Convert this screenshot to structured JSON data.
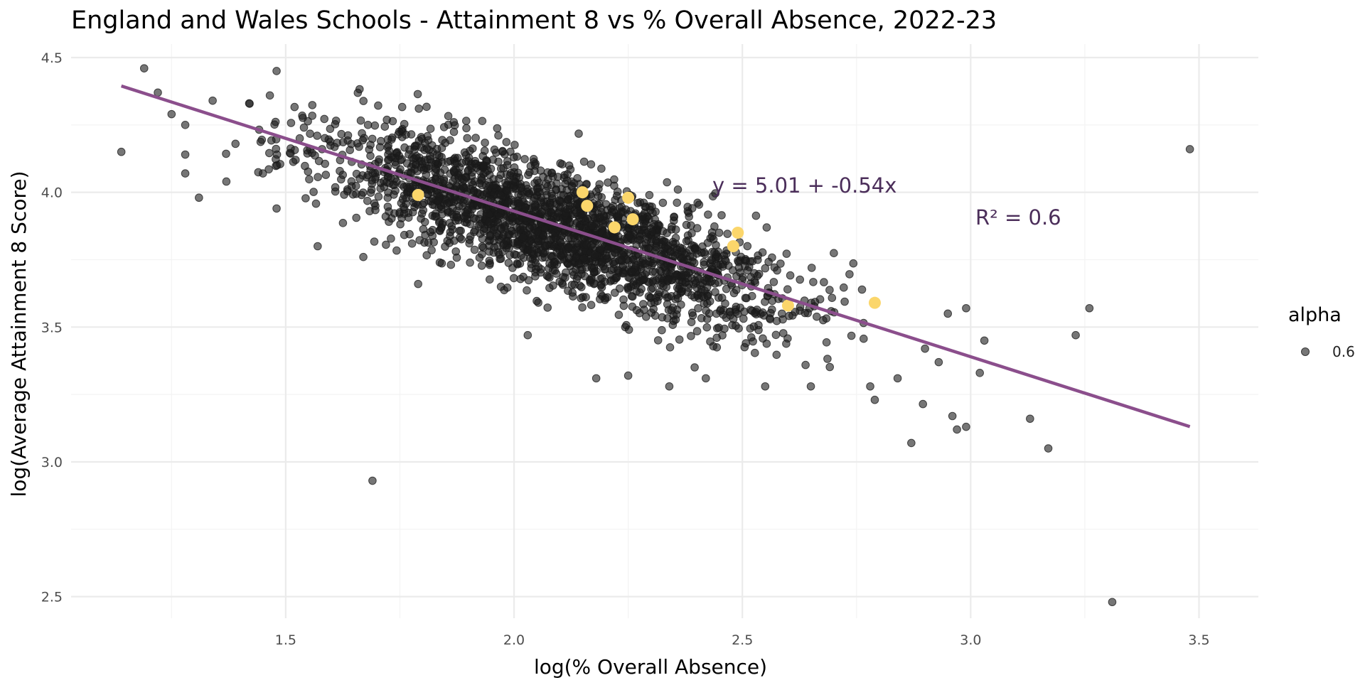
{
  "chart_data": {
    "type": "scatter",
    "title": "England and Wales Schools - Attainment 8 vs % Overall Absence, 2022-23",
    "xlabel": "log(% Overall Absence)",
    "ylabel": "log(Average Attainment 8 Score)",
    "xlim": [
      1.03,
      3.63
    ],
    "ylim": [
      2.42,
      4.55
    ],
    "x_ticks": [
      1.5,
      2.0,
      2.5,
      3.0,
      3.5
    ],
    "x_tick_labels": [
      "1.5",
      "2.0",
      "2.5",
      "3.0",
      "3.5"
    ],
    "y_ticks": [
      2.5,
      3.0,
      3.5,
      4.0,
      4.5
    ],
    "y_tick_labels": [
      "2.5",
      "3.0",
      "3.5",
      "4.0",
      "4.5"
    ],
    "grid": true,
    "legend": {
      "title": "alpha",
      "entries": [
        {
          "label": "0.6"
        }
      ],
      "position": "right"
    },
    "regression": {
      "intercept": 5.01,
      "slope": -0.54,
      "x_range": [
        1.14,
        3.48
      ],
      "color": "#8b4e8c",
      "equation_label": "y = 5.01 + -0.54x",
      "r2_label": "R² = 0.6"
    },
    "series": [
      {
        "name": "schools",
        "color": "#1a1a1a",
        "opacity": 0.6,
        "cloud": {
          "count": 2300,
          "x_mean": 2.1,
          "x_sd": 0.25,
          "slope": -0.54,
          "intercept": 5.0,
          "resid_sd": 0.11,
          "x_min": 1.35,
          "x_max": 2.95
        },
        "points": [
          {
            "x": 1.14,
            "y": 4.15
          },
          {
            "x": 1.19,
            "y": 4.46
          },
          {
            "x": 1.22,
            "y": 4.37
          },
          {
            "x": 1.25,
            "y": 4.29
          },
          {
            "x": 1.28,
            "y": 4.25
          },
          {
            "x": 1.28,
            "y": 4.14
          },
          {
            "x": 1.28,
            "y": 4.07
          },
          {
            "x": 1.31,
            "y": 3.98
          },
          {
            "x": 1.34,
            "y": 4.34
          },
          {
            "x": 1.37,
            "y": 4.04
          },
          {
            "x": 1.39,
            "y": 4.18
          },
          {
            "x": 1.42,
            "y": 4.33
          },
          {
            "x": 1.45,
            "y": 4.07
          },
          {
            "x": 1.48,
            "y": 3.94
          },
          {
            "x": 1.48,
            "y": 4.45
          },
          {
            "x": 1.57,
            "y": 3.8
          },
          {
            "x": 1.67,
            "y": 3.76
          },
          {
            "x": 1.69,
            "y": 2.93
          },
          {
            "x": 1.79,
            "y": 3.66
          },
          {
            "x": 2.03,
            "y": 3.47
          },
          {
            "x": 2.18,
            "y": 3.31
          },
          {
            "x": 2.25,
            "y": 3.32
          },
          {
            "x": 2.34,
            "y": 3.28
          },
          {
            "x": 2.42,
            "y": 3.31
          },
          {
            "x": 2.55,
            "y": 3.28
          },
          {
            "x": 2.65,
            "y": 3.28
          },
          {
            "x": 2.78,
            "y": 3.28
          },
          {
            "x": 2.79,
            "y": 3.23
          },
          {
            "x": 2.84,
            "y": 3.31
          },
          {
            "x": 2.87,
            "y": 3.07
          },
          {
            "x": 2.9,
            "y": 3.42
          },
          {
            "x": 2.93,
            "y": 3.37
          },
          {
            "x": 2.95,
            "y": 3.55
          },
          {
            "x": 2.96,
            "y": 3.17
          },
          {
            "x": 2.97,
            "y": 3.12
          },
          {
            "x": 2.99,
            "y": 3.13
          },
          {
            "x": 2.99,
            "y": 3.57
          },
          {
            "x": 3.02,
            "y": 3.33
          },
          {
            "x": 3.03,
            "y": 3.45
          },
          {
            "x": 3.13,
            "y": 3.16
          },
          {
            "x": 3.17,
            "y": 3.05
          },
          {
            "x": 3.23,
            "y": 3.47
          },
          {
            "x": 3.26,
            "y": 3.57
          },
          {
            "x": 3.31,
            "y": 2.48
          },
          {
            "x": 3.48,
            "y": 4.16
          }
        ]
      },
      {
        "name": "highlighted",
        "color": "#fbd66b",
        "opacity": 1.0,
        "points": [
          {
            "x": 1.79,
            "y": 3.99
          },
          {
            "x": 2.15,
            "y": 4.0
          },
          {
            "x": 2.16,
            "y": 3.95
          },
          {
            "x": 2.22,
            "y": 3.87
          },
          {
            "x": 2.25,
            "y": 3.98
          },
          {
            "x": 2.26,
            "y": 3.9
          },
          {
            "x": 2.48,
            "y": 3.8
          },
          {
            "x": 2.49,
            "y": 3.85
          },
          {
            "x": 2.6,
            "y": 3.58
          },
          {
            "x": 2.79,
            "y": 3.59
          }
        ]
      }
    ]
  }
}
